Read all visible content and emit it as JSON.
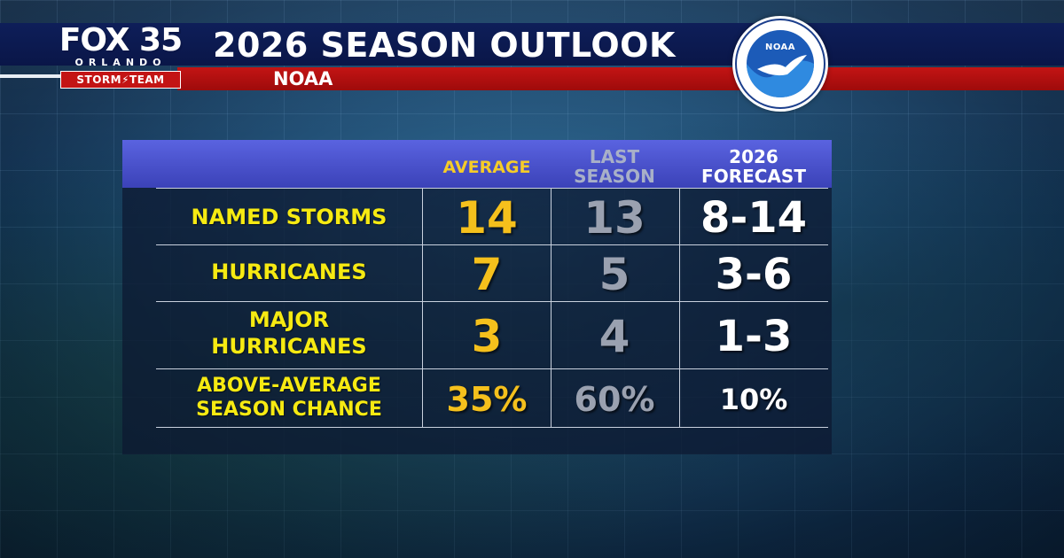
{
  "header": {
    "title": "2026 SEASON OUTLOOK",
    "subtitle": "NOAA"
  },
  "logo": {
    "brand": "FOX 35",
    "city": "ORLANDO",
    "team": "STORM⚡TEAM"
  },
  "seal": {
    "name": "NOAA"
  },
  "table": {
    "columns": {
      "average": "AVERAGE",
      "last_line1": "LAST",
      "last_line2": "SEASON",
      "forecast_line1": "2026",
      "forecast_line2": "FORECAST"
    },
    "rows": [
      {
        "label_line1": "NAMED STORMS",
        "label_line2": "",
        "average": "14",
        "last": "13",
        "forecast": "8-14"
      },
      {
        "label_line1": "HURRICANES",
        "label_line2": "",
        "average": "7",
        "last": "5",
        "forecast": "3-6"
      },
      {
        "label_line1": "MAJOR",
        "label_line2": "HURRICANES",
        "average": "3",
        "last": "4",
        "forecast": "1-3"
      },
      {
        "label_line1": "ABOVE-AVERAGE",
        "label_line2": "SEASON CHANCE",
        "average": "35%",
        "last": "60%",
        "forecast": "10%"
      }
    ]
  },
  "colors": {
    "header_navy": "#0e1e59",
    "header_red": "#c31414",
    "table_header": "#4a52d0",
    "label_yellow": "#f6ea12",
    "average_gold": "#f5c01c",
    "last_gray": "#9aa1b0"
  }
}
